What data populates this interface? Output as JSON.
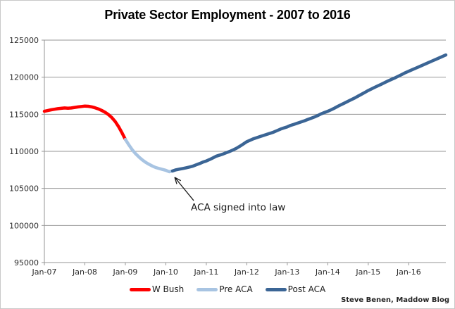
{
  "title": "Private Sector Employment - 2007 to 2016",
  "attribution": "Steve Benen, Maddow Blog",
  "colors": {
    "w_bush": "#fe0000",
    "pre_aca": "#a8c4e2",
    "post_aca": "#3b6595",
    "grid": "#969696",
    "axis_text": "#2b2b2b",
    "annotation": "#1a1a1a"
  },
  "chart_data": {
    "type": "line",
    "title": "Private Sector Employment - 2007 to 2016",
    "xlabel": "",
    "ylabel": "",
    "x_start": "Jan-2007",
    "x_end": "Dec-2016",
    "frequency": "monthly",
    "ylim": [
      95000,
      125000
    ],
    "y_ticks": [
      95000,
      100000,
      105000,
      110000,
      115000,
      120000,
      125000
    ],
    "x_tick_labels": [
      "Jan-07",
      "Jan-08",
      "Jan-09",
      "Jan-10",
      "Jan-11",
      "Jan-12",
      "Jan-13",
      "Jan-14",
      "Jan-15",
      "Jan-16"
    ],
    "x_tick_indices": [
      0,
      12,
      24,
      36,
      48,
      60,
      72,
      84,
      96,
      108
    ],
    "grid": "horizontal",
    "legend_position": "bottom",
    "values": [
      115400,
      115500,
      115600,
      115680,
      115750,
      115800,
      115850,
      115820,
      115850,
      115920,
      115990,
      116050,
      116100,
      116080,
      116000,
      115880,
      115720,
      115520,
      115270,
      114960,
      114550,
      114020,
      113320,
      112500,
      111600,
      110900,
      110250,
      109700,
      109250,
      108850,
      108520,
      108250,
      108020,
      107820,
      107680,
      107560,
      107450,
      107250,
      107350,
      107500,
      107600,
      107680,
      107780,
      107880,
      108000,
      108180,
      108350,
      108550,
      108700,
      108900,
      109130,
      109350,
      109500,
      109650,
      109830,
      110000,
      110200,
      110430,
      110700,
      111000,
      111300,
      111500,
      111700,
      111850,
      112000,
      112150,
      112300,
      112450,
      112600,
      112800,
      113000,
      113150,
      113300,
      113500,
      113650,
      113800,
      113950,
      114100,
      114280,
      114450,
      114620,
      114820,
      115050,
      115230,
      115400,
      115600,
      115830,
      116080,
      116300,
      116520,
      116750,
      116980,
      117200,
      117450,
      117700,
      117950,
      118200,
      118430,
      118650,
      118870,
      119080,
      119300,
      119520,
      119720,
      119930,
      120150,
      120380,
      120600,
      120800,
      121000,
      121200,
      121400,
      121600,
      121800,
      122000,
      122200,
      122400,
      122600,
      122800,
      123000
    ],
    "series": [
      {
        "name": "W Bush",
        "color": "#fe0000",
        "start_index": 0,
        "end_index": 24
      },
      {
        "name": "Pre ACA",
        "color": "#a8c4e2",
        "start_index": 24,
        "end_index": 38
      },
      {
        "name": "Post ACA",
        "color": "#3b6595",
        "start_index": 38,
        "end_index": 119
      }
    ],
    "annotation": {
      "text": "ACA signed into law",
      "point_index": 38,
      "point_value": 107350,
      "point_month": "Mar-2010"
    }
  }
}
